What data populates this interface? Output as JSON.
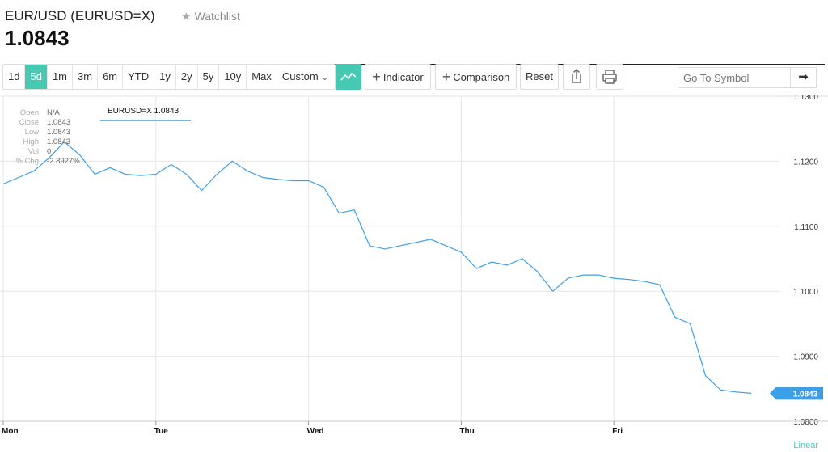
{
  "header": {
    "symbol": "EUR/USD (EURUSD=X)",
    "watchlist_label": "Watchlist",
    "price": "1.0843"
  },
  "toolbar": {
    "ranges": [
      {
        "label": "1d",
        "active": false
      },
      {
        "label": "5d",
        "active": true
      },
      {
        "label": "1m",
        "active": false
      },
      {
        "label": "3m",
        "active": false
      },
      {
        "label": "6m",
        "active": false
      },
      {
        "label": "YTD",
        "active": false
      },
      {
        "label": "1y",
        "active": false
      },
      {
        "label": "2y",
        "active": false
      },
      {
        "label": "5y",
        "active": false
      },
      {
        "label": "10y",
        "active": false
      },
      {
        "label": "Max",
        "active": false
      }
    ],
    "custom_label": "Custom",
    "indicator_label": "Indicator",
    "comparison_label": "Comparison",
    "reset_label": "Reset",
    "search_placeholder": "Go To Symbol",
    "accent_color": "#45c9b3"
  },
  "ohlc": [
    {
      "label": "Open",
      "value": "N/A"
    },
    {
      "label": "Close",
      "value": "1.0843"
    },
    {
      "label": "Low",
      "value": "1.0843"
    },
    {
      "label": "High",
      "value": "1.0843"
    },
    {
      "label": "Vol",
      "value": "0"
    },
    {
      "label": "% Chg",
      "value": "-2.8927%"
    }
  ],
  "chart_data": {
    "type": "line",
    "series": [
      {
        "name": "EURUSD=X 1.0843",
        "color": "#3d9ee8",
        "x": [
          0,
          0.1,
          0.2,
          0.3,
          0.4,
          0.5,
          0.6,
          0.7,
          0.8,
          0.9,
          1.0,
          1.1,
          1.2,
          1.3,
          1.4,
          1.5,
          1.6,
          1.7,
          1.8,
          1.9,
          2.0,
          2.1,
          2.2,
          2.3,
          2.4,
          2.5,
          2.6,
          2.7,
          2.8,
          2.9,
          3.0,
          3.1,
          3.2,
          3.3,
          3.4,
          3.5,
          3.6,
          3.7,
          3.8,
          3.9,
          4.0,
          4.1,
          4.2,
          4.3,
          4.4,
          4.5,
          4.6,
          4.7,
          4.8,
          4.9
        ],
        "values": [
          1.1165,
          1.1175,
          1.1185,
          1.1205,
          1.123,
          1.121,
          1.118,
          1.119,
          1.118,
          1.1178,
          1.118,
          1.1195,
          1.118,
          1.1155,
          1.118,
          1.12,
          1.1185,
          1.1175,
          1.1172,
          1.117,
          1.117,
          1.116,
          1.112,
          1.1125,
          1.107,
          1.1065,
          1.107,
          1.1075,
          1.108,
          1.107,
          1.106,
          1.1035,
          1.1045,
          1.104,
          1.105,
          1.103,
          1.1,
          1.102,
          1.1025,
          1.1025,
          1.102,
          1.1018,
          1.1015,
          1.101,
          1.096,
          1.095,
          1.087,
          1.0848,
          1.0845,
          1.0843
        ]
      }
    ],
    "x_tick_labels": [
      "Mon",
      "Tue",
      "Wed",
      "Thu",
      "Fri"
    ],
    "y_ticks": [
      "1.1300",
      "1.1200",
      "1.1100",
      "1.1000",
      "1.0900",
      "1.0800"
    ],
    "ylim": [
      1.08,
      1.13
    ],
    "xlim": [
      0,
      5
    ],
    "last_value_label": "1.0843",
    "scale_label": "Linear",
    "grid": true
  }
}
